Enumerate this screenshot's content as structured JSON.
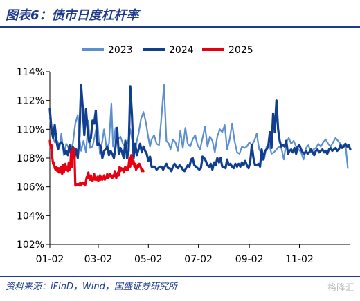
{
  "header": {
    "title": "图表6：债市日度杠杆率"
  },
  "footer": {
    "source": "资料来源：iFinD，Wind，国盛证券研究所",
    "watermark": "格隆汇"
  },
  "chart_data": {
    "type": "line",
    "title": "",
    "xlabel": "",
    "ylabel": "",
    "x_ticks": [
      "01-02",
      "03-02",
      "05-02",
      "07-02",
      "09-02",
      "11-02"
    ],
    "y_ticks": [
      "102%",
      "104%",
      "106%",
      "108%",
      "110%",
      "112%",
      "114%"
    ],
    "ylim": [
      102,
      114
    ],
    "legend_position": "top",
    "grid": false,
    "series": [
      {
        "name": "2023",
        "color": "#5b8fd0",
        "x": [
          0,
          3,
          6,
          9,
          12,
          14,
          17,
          20,
          23,
          25,
          28,
          31,
          34,
          36,
          38,
          41,
          44,
          47,
          49,
          52,
          55,
          58,
          61,
          64,
          66,
          69,
          72,
          75,
          77,
          80,
          83,
          86,
          89,
          92,
          95,
          98,
          101,
          104,
          106,
          108,
          111,
          114,
          117,
          120,
          122,
          124,
          127,
          130,
          133,
          136,
          139,
          142,
          145,
          147,
          150,
          153,
          156,
          159,
          162,
          165,
          168,
          171,
          174,
          177,
          180,
          183,
          186,
          189,
          192,
          195,
          198,
          201,
          204,
          207,
          210,
          213,
          216,
          219,
          222,
          225,
          228,
          231,
          234,
          237,
          240,
          243,
          246,
          249,
          252,
          255,
          258,
          261,
          264,
          267,
          270,
          273,
          276,
          279,
          282,
          285,
          288,
          291,
          294,
          297,
          300,
          303,
          306,
          309,
          312,
          315,
          318,
          321,
          324,
          327,
          330,
          333,
          336,
          339,
          342,
          345,
          348,
          351,
          354,
          357,
          360,
          363
        ],
        "y": [
          110.8,
          109.6,
          109.1,
          109.2,
          108.8,
          109.7,
          108.2,
          109.0,
          108.7,
          108.6,
          109.0,
          110.4,
          111.0,
          109.4,
          108.5,
          109.2,
          108.4,
          110.6,
          108.7,
          108.8,
          109.6,
          110.5,
          108.3,
          109.2,
          110.0,
          108.7,
          109.0,
          111.8,
          108.8,
          110.1,
          109.3,
          109.5,
          109.0,
          108.8,
          109.1,
          110.0,
          109.0,
          108.6,
          109.2,
          109.7,
          110.7,
          111.2,
          110.5,
          109.4,
          108.8,
          109.3,
          109.6,
          109.0,
          108.9,
          110.9,
          113.1,
          109.2,
          109.0,
          108.6,
          109.3,
          109.1,
          108.5,
          109.9,
          108.7,
          110.1,
          109.0,
          108.8,
          109.3,
          109.6,
          108.9,
          108.6,
          109.4,
          110.2,
          108.8,
          109.5,
          109.2,
          108.4,
          109.5,
          110.0,
          109.8,
          110.3,
          108.6,
          109.3,
          110.4,
          109.2,
          108.4,
          108.3,
          108.8,
          108.7,
          108.8,
          109.1,
          108.9,
          109.2,
          109.7,
          108.6,
          108.3,
          107.9,
          108.8,
          109.0,
          108.3,
          108.4,
          108.6,
          108.8,
          108.7,
          107.9,
          109.1,
          109.4,
          109.0,
          109.2,
          108.8,
          108.6,
          108.4,
          107.9,
          108.7,
          108.9,
          108.4,
          108.6,
          108.7,
          109.0,
          108.8,
          109.1,
          109.3,
          109.0,
          108.8,
          109.1,
          109.4,
          109.2,
          109.0,
          108.8,
          109.0,
          107.3
        ]
      },
      {
        "name": "2024",
        "color": "#123e8f",
        "x": [
          0,
          2,
          4,
          6,
          8,
          10,
          12,
          14,
          16,
          18,
          20,
          22,
          24,
          26,
          28,
          30,
          32,
          34,
          36,
          38,
          40,
          42,
          44,
          46,
          48,
          50,
          52,
          54,
          56,
          58,
          60,
          62,
          64,
          66,
          68,
          70,
          72,
          74,
          76,
          78,
          80,
          82,
          84,
          86,
          88,
          90,
          92,
          94,
          96,
          98,
          100,
          102,
          104,
          106,
          108,
          110,
          112,
          114,
          116,
          118,
          120,
          122,
          124,
          126,
          128,
          130,
          132,
          134,
          136,
          138,
          140,
          142,
          144,
          146,
          148,
          150,
          152,
          154,
          156,
          158,
          160,
          162,
          164,
          166,
          168,
          170,
          172,
          174,
          176,
          178,
          180,
          182,
          184,
          186,
          188,
          190,
          192,
          194,
          196,
          198,
          200,
          202,
          204,
          206,
          208,
          210,
          212,
          214,
          216,
          218,
          220,
          222,
          224,
          226,
          228,
          230,
          232,
          234,
          236,
          238,
          240,
          242,
          244,
          246,
          248,
          250,
          252,
          254,
          256,
          258,
          260,
          262,
          264,
          266,
          268,
          270,
          272,
          274,
          276,
          278,
          280,
          282,
          284,
          286,
          288,
          290,
          292,
          294,
          296,
          298,
          300,
          302,
          304,
          306,
          308,
          310,
          312,
          314,
          316,
          318,
          320,
          322,
          324,
          326,
          328,
          330,
          332,
          334,
          336,
          338,
          340,
          342,
          344,
          346,
          348,
          350,
          352,
          354,
          356,
          358,
          360,
          362,
          364,
          366
        ],
        "y": [
          111.4,
          110.0,
          109.4,
          110.3,
          109.2,
          108.6,
          109.0,
          109.1,
          108.9,
          108.3,
          108.5,
          108.2,
          108.9,
          108.2,
          108.8,
          108.0,
          108.6,
          108.0,
          109.5,
          113.1,
          111.6,
          109.6,
          111.4,
          110.0,
          109.1,
          109.4,
          110.6,
          110.4,
          111.3,
          108.9,
          109.0,
          108.8,
          108.0,
          108.5,
          108.6,
          108.8,
          108.2,
          108.5,
          108.3,
          108.0,
          108.8,
          110.1,
          108.3,
          108.7,
          108.4,
          108.0,
          109.2,
          108.0,
          108.5,
          113.0,
          111.0,
          108.0,
          109.0,
          108.2,
          108.6,
          109.0,
          108.4,
          108.8,
          108.5,
          108.3,
          107.8,
          108.1,
          107.4,
          107.4,
          107.4,
          107.2,
          107.3,
          107.4,
          107.4,
          107.2,
          107.4,
          107.6,
          107.3,
          107.3,
          107.1,
          107.4,
          107.6,
          107.4,
          107.3,
          107.5,
          107.4,
          107.2,
          107.1,
          107.3,
          107.5,
          107.4,
          107.9,
          108.0,
          107.5,
          107.4,
          107.3,
          107.2,
          107.3,
          108.1,
          108.0,
          107.8,
          107.5,
          107.4,
          107.6,
          107.2,
          107.7,
          107.5,
          108.0,
          107.7,
          108.0,
          107.4,
          107.4,
          107.3,
          107.9,
          107.5,
          107.6,
          107.4,
          107.3,
          107.6,
          107.4,
          107.6,
          107.4,
          107.7,
          107.5,
          107.8,
          107.5,
          107.3,
          107.7,
          108.9,
          108.0,
          107.5,
          107.5,
          107.6,
          107.4,
          108.6,
          107.9,
          108.5,
          108.6,
          108.8,
          109.8,
          108.7,
          111.1,
          109.8,
          112.0,
          110.0,
          109.2,
          108.8,
          108.9,
          108.8,
          109.2,
          108.3,
          108.5,
          108.6,
          108.4,
          108.7,
          108.3,
          108.8,
          108.9,
          108.6,
          108.4,
          108.3,
          108.5,
          108.3,
          108.4,
          108.6,
          108.4,
          108.2,
          108.5,
          108.6,
          108.4,
          108.5,
          108.6,
          108.4,
          108.5,
          108.3,
          108.6,
          108.7,
          108.5,
          108.6,
          108.7,
          108.5,
          108.6,
          108.9,
          108.7,
          108.8,
          109.0,
          108.8,
          108.9,
          108.6
        ]
      },
      {
        "name": "2025",
        "color": "#e60012",
        "x": [
          0,
          1,
          2,
          3,
          4,
          5,
          6,
          7,
          8,
          9,
          10,
          11,
          12,
          13,
          14,
          15,
          16,
          17,
          18,
          19,
          20,
          21,
          22,
          23,
          24,
          25,
          26,
          27,
          28,
          29,
          30,
          31,
          32,
          33,
          34,
          35,
          36,
          37,
          38,
          39,
          40,
          41,
          42,
          43,
          44,
          45,
          46,
          47,
          48,
          49,
          50,
          51,
          52,
          53,
          54,
          55,
          56,
          57,
          58,
          59,
          60,
          61,
          62,
          63,
          64,
          65,
          66,
          67,
          68,
          69,
          70,
          71,
          72,
          73,
          74,
          75,
          76,
          77,
          78,
          79,
          80,
          81,
          82,
          83,
          84,
          85,
          86,
          87,
          88,
          89,
          90,
          91,
          92,
          93,
          94,
          95,
          96,
          97,
          98,
          99,
          100,
          101,
          102,
          103,
          104,
          105,
          106,
          107,
          108,
          109,
          110,
          111,
          112,
          113,
          114
        ],
        "y": [
          109.2,
          108.7,
          108.9,
          108.0,
          107.6,
          107.7,
          107.3,
          107.2,
          107.4,
          107.1,
          107.3,
          107.0,
          107.3,
          107.0,
          107.4,
          106.9,
          107.5,
          107.0,
          107.3,
          107.6,
          107.2,
          107.4,
          107.1,
          107.7,
          107.2,
          107.5,
          108.5,
          107.4,
          108.6,
          108.7,
          108.3,
          106.1,
          106.1,
          106.2,
          106.1,
          106.2,
          106.1,
          106.3,
          106.1,
          106.2,
          106.3,
          106.2,
          106.3,
          106.1,
          106.4,
          106.7,
          106.6,
          107.0,
          106.6,
          106.5,
          106.8,
          106.6,
          106.4,
          106.6,
          106.9,
          106.5,
          106.6,
          106.5,
          106.7,
          106.4,
          106.6,
          106.8,
          106.5,
          106.7,
          106.5,
          106.6,
          106.8,
          106.5,
          106.6,
          106.7,
          106.9,
          106.6,
          106.7,
          106.9,
          106.7,
          106.8,
          106.6,
          106.8,
          106.7,
          107.1,
          106.8,
          106.6,
          106.9,
          107.0,
          106.8,
          107.4,
          107.1,
          107.3,
          107.2,
          107.2,
          107.0,
          107.3,
          107.4,
          107.2,
          107.3,
          107.2,
          107.5,
          108.0,
          107.4,
          108.2,
          108.1,
          107.6,
          107.8,
          107.4,
          107.6,
          107.2,
          107.3,
          107.5,
          107.4,
          107.6,
          107.5,
          107.3,
          107.1,
          107.2,
          107.1
        ]
      }
    ]
  }
}
